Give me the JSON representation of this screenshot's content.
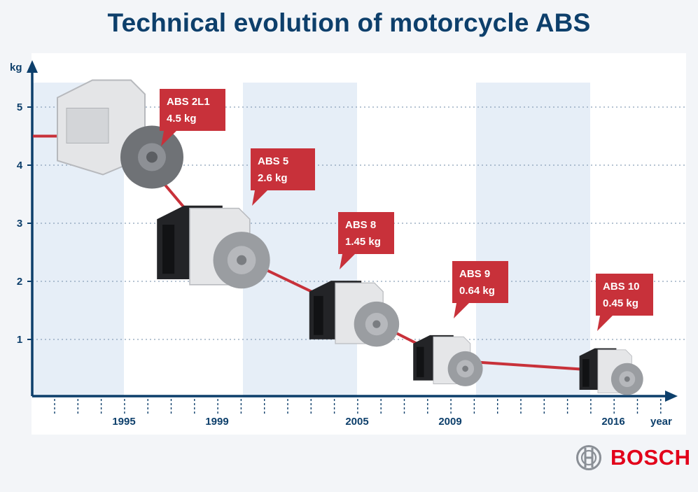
{
  "title": "Technical evolution of motorcycle ABS",
  "brand": {
    "name": "BOSCH",
    "logo_icon": "bosch-armature-icon"
  },
  "colors": {
    "title": "#0d3f6b",
    "axis": "#0d3f6b",
    "line": "#c8313a",
    "callout": "#c8313a",
    "band": "#e6eef7",
    "brand": "#e2001a"
  },
  "chart_data": {
    "type": "line",
    "title": "Technical evolution of motorcycle ABS",
    "xlabel": "year",
    "ylabel": "kg",
    "ylim": [
      0,
      5.4
    ],
    "yticks": [
      1,
      2,
      3,
      4,
      5
    ],
    "xticks": [
      1995,
      1999,
      2005,
      2009,
      2016
    ],
    "grid": "horizontal-dotted",
    "series": [
      {
        "x": [
          1995,
          1999,
          2005,
          2009,
          2016
        ],
        "values": [
          4.5,
          2.6,
          1.45,
          0.64,
          0.45
        ]
      }
    ],
    "annotations": [
      {
        "x": 1995,
        "model": "ABS 2L1",
        "weight": "4.5 kg"
      },
      {
        "x": 1999,
        "model": "ABS 5",
        "weight": "2.6 kg"
      },
      {
        "x": 2005,
        "model": "ABS 8",
        "weight": "1.45 kg"
      },
      {
        "x": 2009,
        "model": "ABS 9",
        "weight": "0.64 kg"
      },
      {
        "x": 2016,
        "model": "ABS 10",
        "weight": "0.45 kg"
      }
    ]
  }
}
